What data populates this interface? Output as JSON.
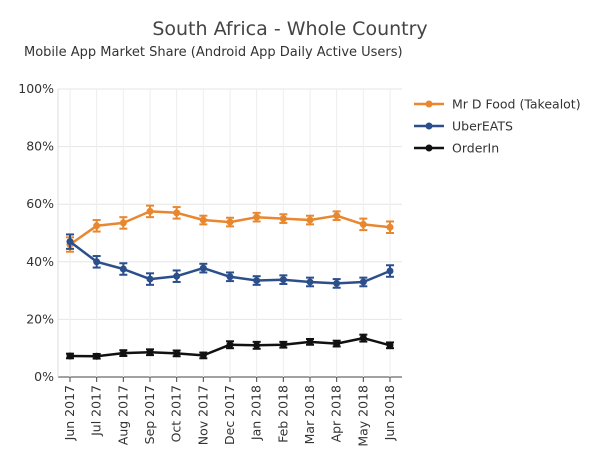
{
  "chart_data": {
    "type": "line",
    "title": "South Africa - Whole Country",
    "subtitle": "Mobile App Market Share (Android App Daily Active Users)",
    "xlabel": "",
    "ylabel": "",
    "ylim": [
      0,
      100
    ],
    "y_ticks": [
      "0%",
      "20%",
      "40%",
      "60%",
      "80%",
      "100%"
    ],
    "grid": true,
    "legend_position": "top-right",
    "categories": [
      "Jun 2017",
      "Jul 2017",
      "Aug 2017",
      "Sep 2017",
      "Oct 2017",
      "Nov 2017",
      "Dec 2017",
      "Jan 2018",
      "Feb 2018",
      "Mar 2018",
      "Apr 2018",
      "May 2018",
      "Jun 2018"
    ],
    "series": [
      {
        "name": "Mr D Food (Takealot)",
        "color": "#e8872e",
        "values": [
          46,
          52.5,
          53.5,
          57.5,
          57,
          54.5,
          53.8,
          55.5,
          55,
          54.5,
          56,
          53,
          52
        ],
        "errors": [
          2.5,
          2,
          2,
          2,
          2,
          1.5,
          1.5,
          1.5,
          1.5,
          1.5,
          1.5,
          2,
          2
        ]
      },
      {
        "name": "UberEATS",
        "color": "#2c4f8c",
        "values": [
          47,
          40,
          37.5,
          34,
          35,
          37.8,
          34.8,
          33.5,
          33.8,
          33,
          32.5,
          33,
          36.8
        ],
        "errors": [
          2.5,
          2,
          2,
          2,
          2,
          1.5,
          1.5,
          1.5,
          1.5,
          1.5,
          1.5,
          1.5,
          2
        ]
      },
      {
        "name": "OrderIn",
        "color": "#111111",
        "values": [
          7.3,
          7.2,
          8.3,
          8.6,
          8.2,
          7.5,
          11.2,
          11,
          11.2,
          12.2,
          11.6,
          13.5,
          11
        ],
        "errors": [
          0.8,
          0.8,
          1,
          1,
          1,
          1,
          1.2,
          1.2,
          1,
          1,
          1,
          1.2,
          1
        ]
      }
    ]
  }
}
